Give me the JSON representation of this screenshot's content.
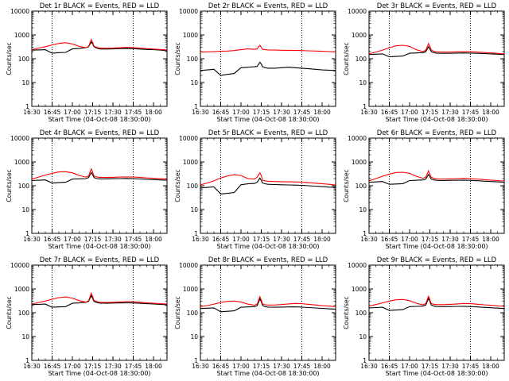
{
  "x_ticks": [
    "16:30",
    "16:45",
    "17:00",
    "17:15",
    "17:30",
    "17:45",
    "18:00"
  ],
  "y_ticks": [
    "1",
    "10",
    "100",
    "1000",
    "10000"
  ],
  "ylabel": "Counts/sec",
  "xlabel": "Start Time (04-Oct-08 18:30:00)",
  "colors": {
    "events": "#000000",
    "lld": "#ff0000",
    "axes": "#000000"
  },
  "chart_data": [
    {
      "type": "line",
      "title": "Det 1r BLACK = Events, RED = LLD",
      "x": [
        "16:30",
        "16:35",
        "16:40",
        "16:45",
        "16:50",
        "16:55",
        "17:00",
        "17:05",
        "17:10",
        "17:12",
        "17:14",
        "17:15",
        "17:16",
        "17:18",
        "17:20",
        "17:25",
        "17:30",
        "17:35",
        "17:40",
        "17:45",
        "17:50",
        "17:55",
        "18:00",
        "18:05",
        "18:10"
      ],
      "xlim": [
        "16:30",
        "18:10"
      ],
      "ylim": [
        1,
        10000
      ],
      "log_y": true,
      "vlines": [
        "16:45",
        "17:45"
      ],
      "series": [
        {
          "role": "events",
          "values": [
            230,
            235,
            240,
            170,
            180,
            185,
            260,
            270,
            290,
            320,
            500,
            420,
            320,
            280,
            260,
            255,
            260,
            265,
            270,
            265,
            255,
            245,
            240,
            230,
            215
          ]
        },
        {
          "role": "lld",
          "values": [
            240,
            280,
            320,
            380,
            440,
            470,
            420,
            330,
            290,
            330,
            640,
            480,
            340,
            300,
            280,
            275,
            280,
            290,
            300,
            295,
            280,
            265,
            255,
            245,
            235
          ]
        }
      ]
    },
    {
      "type": "line",
      "title": "Det 2r BLACK = Events, RED = LLD",
      "x": [
        "16:30",
        "16:35",
        "16:40",
        "16:45",
        "16:50",
        "16:55",
        "17:00",
        "17:05",
        "17:10",
        "17:12",
        "17:14",
        "17:15",
        "17:16",
        "17:18",
        "17:20",
        "17:25",
        "17:30",
        "17:35",
        "17:40",
        "17:45",
        "17:50",
        "17:55",
        "18:00",
        "18:05",
        "18:10"
      ],
      "xlim": [
        "16:30",
        "18:10"
      ],
      "ylim": [
        1,
        10000
      ],
      "log_y": true,
      "vlines": [
        "16:45",
        "17:45"
      ],
      "series": [
        {
          "role": "events",
          "values": [
            32,
            34,
            36,
            20,
            22,
            24,
            42,
            44,
            46,
            48,
            72,
            60,
            46,
            42,
            40,
            40,
            42,
            44,
            42,
            40,
            38,
            36,
            34,
            33,
            32
          ]
        },
        {
          "role": "lld",
          "values": [
            190,
            195,
            200,
            205,
            210,
            220,
            240,
            260,
            250,
            260,
            370,
            300,
            250,
            240,
            235,
            230,
            228,
            226,
            224,
            220,
            215,
            210,
            205,
            200,
            195
          ]
        }
      ]
    },
    {
      "type": "line",
      "title": "Det 3r BLACK = Events, RED = LLD",
      "x": [
        "16:30",
        "16:35",
        "16:40",
        "16:45",
        "16:50",
        "16:55",
        "17:00",
        "17:05",
        "17:10",
        "17:12",
        "17:14",
        "17:15",
        "17:16",
        "17:18",
        "17:20",
        "17:25",
        "17:30",
        "17:35",
        "17:40",
        "17:45",
        "17:50",
        "17:55",
        "18:00",
        "18:05",
        "18:10"
      ],
      "xlim": [
        "16:30",
        "18:10"
      ],
      "ylim": [
        1,
        10000
      ],
      "log_y": true,
      "vlines": [
        "16:45",
        "17:45"
      ],
      "series": [
        {
          "role": "events",
          "values": [
            150,
            155,
            160,
            120,
            125,
            130,
            170,
            175,
            180,
            200,
            320,
            260,
            200,
            180,
            170,
            168,
            170,
            172,
            175,
            172,
            168,
            165,
            160,
            155,
            150
          ]
        },
        {
          "role": "lld",
          "values": [
            160,
            190,
            230,
            290,
            350,
            370,
            330,
            240,
            200,
            230,
            430,
            330,
            230,
            205,
            195,
            190,
            192,
            196,
            200,
            198,
            190,
            182,
            175,
            168,
            160
          ]
        }
      ]
    },
    {
      "type": "line",
      "title": "Det 4r BLACK = Events, RED = LLD",
      "x": [
        "16:30",
        "16:35",
        "16:40",
        "16:45",
        "16:50",
        "16:55",
        "17:00",
        "17:05",
        "17:10",
        "17:12",
        "17:14",
        "17:15",
        "17:16",
        "17:18",
        "17:20",
        "17:25",
        "17:30",
        "17:35",
        "17:40",
        "17:45",
        "17:50",
        "17:55",
        "18:00",
        "18:05",
        "18:10"
      ],
      "xlim": [
        "16:30",
        "18:10"
      ],
      "ylim": [
        1,
        10000
      ],
      "log_y": true,
      "vlines": [
        "16:45",
        "17:45"
      ],
      "series": [
        {
          "role": "events",
          "values": [
            165,
            170,
            175,
            130,
            135,
            140,
            190,
            195,
            200,
            220,
            360,
            290,
            220,
            200,
            195,
            195,
            198,
            200,
            202,
            198,
            192,
            185,
            180,
            175,
            170
          ]
        },
        {
          "role": "lld",
          "values": [
            190,
            230,
            280,
            330,
            380,
            390,
            350,
            270,
            230,
            260,
            500,
            370,
            260,
            235,
            225,
            222,
            225,
            230,
            235,
            232,
            222,
            212,
            205,
            198,
            190
          ]
        }
      ]
    },
    {
      "type": "line",
      "title": "Det 5r BLACK = Events, RED = LLD",
      "x": [
        "16:30",
        "16:35",
        "16:40",
        "16:45",
        "16:50",
        "16:55",
        "17:00",
        "17:05",
        "17:10",
        "17:12",
        "17:14",
        "17:15",
        "17:16",
        "17:18",
        "17:20",
        "17:25",
        "17:30",
        "17:35",
        "17:40",
        "17:45",
        "17:50",
        "17:55",
        "18:00",
        "18:05",
        "18:10"
      ],
      "xlim": [
        "16:30",
        "18:10"
      ],
      "ylim": [
        1,
        10000
      ],
      "log_y": true,
      "vlines": [
        "16:45",
        "17:45"
      ],
      "series": [
        {
          "role": "events",
          "values": [
            80,
            85,
            90,
            45,
            48,
            52,
            110,
            120,
            125,
            140,
            210,
            170,
            130,
            120,
            115,
            112,
            110,
            108,
            106,
            104,
            100,
            96,
            92,
            88,
            85
          ]
        },
        {
          "role": "lld",
          "values": [
            110,
            130,
            160,
            210,
            260,
            290,
            270,
            200,
            190,
            230,
            350,
            270,
            170,
            160,
            155,
            150,
            148,
            146,
            144,
            140,
            135,
            128,
            122,
            115,
            108
          ]
        }
      ]
    },
    {
      "type": "line",
      "title": "Det 6r BLACK = Events, RED = LLD",
      "x": [
        "16:30",
        "16:35",
        "16:40",
        "16:45",
        "16:50",
        "16:55",
        "17:00",
        "17:05",
        "17:10",
        "17:12",
        "17:14",
        "17:15",
        "17:16",
        "17:18",
        "17:20",
        "17:25",
        "17:30",
        "17:35",
        "17:40",
        "17:45",
        "17:50",
        "17:55",
        "18:00",
        "18:05",
        "18:10"
      ],
      "xlim": [
        "16:30",
        "18:10"
      ],
      "ylim": [
        1,
        10000
      ],
      "log_y": true,
      "vlines": [
        "16:45",
        "17:45"
      ],
      "series": [
        {
          "role": "events",
          "values": [
            140,
            145,
            150,
            115,
            118,
            122,
            165,
            170,
            175,
            190,
            300,
            240,
            190,
            175,
            168,
            166,
            168,
            170,
            172,
            168,
            162,
            156,
            150,
            146,
            140
          ]
        },
        {
          "role": "lld",
          "values": [
            160,
            200,
            250,
            310,
            360,
            370,
            330,
            250,
            205,
            230,
            420,
            310,
            225,
            205,
            195,
            192,
            195,
            200,
            205,
            200,
            190,
            180,
            172,
            165,
            158
          ]
        }
      ]
    },
    {
      "type": "line",
      "title": "Det 7r BLACK = Events, RED = LLD",
      "x": [
        "16:30",
        "16:35",
        "16:40",
        "16:45",
        "16:50",
        "16:55",
        "17:00",
        "17:05",
        "17:10",
        "17:12",
        "17:14",
        "17:15",
        "17:16",
        "17:18",
        "17:20",
        "17:25",
        "17:30",
        "17:35",
        "17:40",
        "17:45",
        "17:50",
        "17:55",
        "18:00",
        "18:05",
        "18:10"
      ],
      "xlim": [
        "16:30",
        "18:10"
      ],
      "ylim": [
        1,
        10000
      ],
      "log_y": true,
      "vlines": [
        "16:45",
        "17:45"
      ],
      "series": [
        {
          "role": "events",
          "values": [
            220,
            225,
            230,
            170,
            175,
            180,
            250,
            260,
            275,
            300,
            520,
            400,
            300,
            270,
            255,
            250,
            255,
            260,
            262,
            258,
            250,
            240,
            232,
            225,
            215
          ]
        },
        {
          "role": "lld",
          "values": [
            230,
            270,
            310,
            370,
            430,
            460,
            410,
            320,
            280,
            320,
            660,
            470,
            330,
            295,
            275,
            270,
            275,
            285,
            295,
            290,
            275,
            262,
            250,
            240,
            230
          ]
        }
      ]
    },
    {
      "type": "line",
      "title": "Det 8r BLACK = Events, RED = LLD",
      "x": [
        "16:30",
        "16:35",
        "16:40",
        "16:45",
        "16:50",
        "16:55",
        "17:00",
        "17:05",
        "17:10",
        "17:12",
        "17:14",
        "17:15",
        "17:16",
        "17:18",
        "17:20",
        "17:25",
        "17:30",
        "17:35",
        "17:40",
        "17:45",
        "17:50",
        "17:55",
        "18:00",
        "18:05",
        "18:10"
      ],
      "xlim": [
        "16:30",
        "18:10"
      ],
      "ylim": [
        1,
        10000
      ],
      "log_y": true,
      "vlines": [
        "16:45",
        "17:45"
      ],
      "series": [
        {
          "role": "events",
          "values": [
            150,
            155,
            160,
            110,
            115,
            120,
            170,
            175,
            180,
            200,
            380,
            290,
            200,
            180,
            172,
            170,
            172,
            175,
            176,
            172,
            165,
            158,
            152,
            146,
            140
          ]
        },
        {
          "role": "lld",
          "values": [
            180,
            200,
            230,
            270,
            300,
            310,
            280,
            230,
            205,
            235,
            470,
            340,
            235,
            215,
            210,
            212,
            220,
            235,
            245,
            240,
            225,
            212,
            200,
            190,
            180
          ]
        }
      ]
    },
    {
      "type": "line",
      "title": "Det 9r BLACK = Events, RED = LLD",
      "x": [
        "16:30",
        "16:35",
        "16:40",
        "16:45",
        "16:50",
        "16:55",
        "17:00",
        "17:05",
        "17:10",
        "17:12",
        "17:14",
        "17:15",
        "17:16",
        "17:18",
        "17:20",
        "17:25",
        "17:30",
        "17:35",
        "17:40",
        "17:45",
        "17:50",
        "17:55",
        "18:00",
        "18:05",
        "18:10"
      ],
      "xlim": [
        "16:30",
        "18:10"
      ],
      "ylim": [
        1,
        10000
      ],
      "log_y": true,
      "vlines": [
        "16:45",
        "17:45"
      ],
      "series": [
        {
          "role": "events",
          "values": [
            160,
            165,
            170,
            125,
            130,
            135,
            180,
            185,
            190,
            210,
            400,
            300,
            210,
            190,
            182,
            180,
            182,
            185,
            186,
            182,
            175,
            168,
            162,
            156,
            150
          ]
        },
        {
          "role": "lld",
          "values": [
            190,
            220,
            260,
            310,
            350,
            360,
            320,
            250,
            215,
            245,
            490,
            350,
            245,
            225,
            218,
            218,
            225,
            235,
            245,
            240,
            228,
            215,
            205,
            195,
            185
          ]
        }
      ]
    }
  ]
}
